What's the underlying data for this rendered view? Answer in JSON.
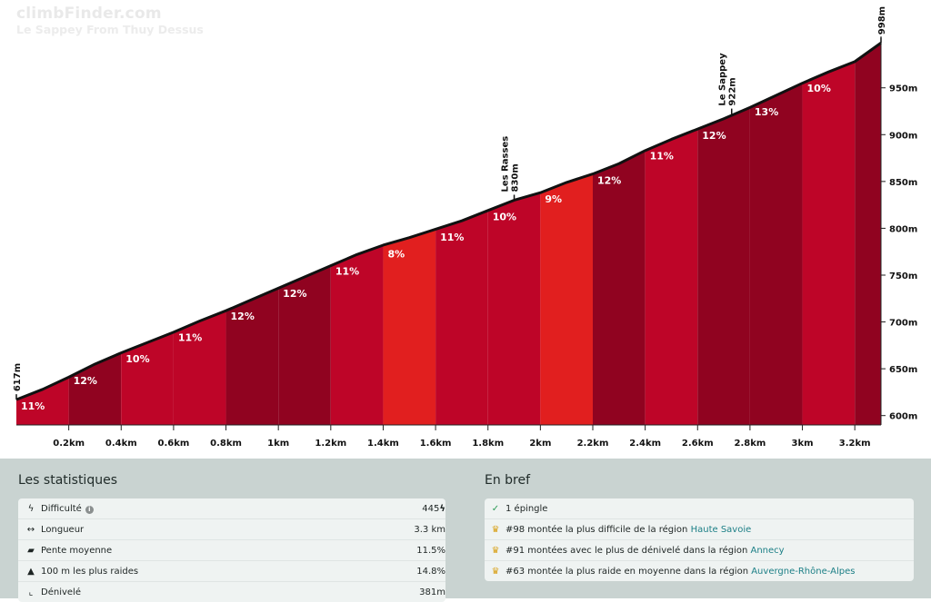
{
  "header": {
    "brand": "climbFinder.com",
    "subtitle": "Le Sappey From Thuy Dessus"
  },
  "chart_data": {
    "type": "area",
    "x_unit": "km",
    "y_unit": "m",
    "ylim": [
      590,
      1005
    ],
    "xlim": [
      0,
      3.3
    ],
    "x": [
      0,
      0.1,
      0.2,
      0.3,
      0.4,
      0.5,
      0.6,
      0.7,
      0.8,
      0.9,
      1.0,
      1.1,
      1.2,
      1.3,
      1.4,
      1.5,
      1.6,
      1.7,
      1.8,
      1.9,
      2.0,
      2.1,
      2.2,
      2.3,
      2.4,
      2.5,
      2.6,
      2.7,
      2.8,
      2.9,
      3.0,
      3.1,
      3.2,
      3.3
    ],
    "elevation": [
      617,
      628,
      641,
      655,
      667,
      678,
      689,
      701,
      712,
      724,
      736,
      748,
      760,
      772,
      782,
      790,
      799,
      808,
      819,
      830,
      838,
      849,
      858,
      869,
      883,
      895,
      906,
      917,
      929,
      942,
      955,
      967,
      978,
      998
    ],
    "segments": [
      {
        "from": 0.0,
        "to": 0.2,
        "gradient": "11%",
        "color": "#be0528"
      },
      {
        "from": 0.2,
        "to": 0.4,
        "gradient": "12%",
        "color": "#900320"
      },
      {
        "from": 0.4,
        "to": 0.6,
        "gradient": "10%",
        "color": "#be0528"
      },
      {
        "from": 0.6,
        "to": 0.8,
        "gradient": "11%",
        "color": "#be0528"
      },
      {
        "from": 0.8,
        "to": 1.0,
        "gradient": "12%",
        "color": "#900320"
      },
      {
        "from": 1.0,
        "to": 1.2,
        "gradient": "12%",
        "color": "#900320"
      },
      {
        "from": 1.2,
        "to": 1.4,
        "gradient": "11%",
        "color": "#be0528"
      },
      {
        "from": 1.4,
        "to": 1.6,
        "gradient": "8%",
        "color": "#e11f1f"
      },
      {
        "from": 1.6,
        "to": 1.8,
        "gradient": "11%",
        "color": "#be0528"
      },
      {
        "from": 1.8,
        "to": 2.0,
        "gradient": "10%",
        "color": "#be0528"
      },
      {
        "from": 2.0,
        "to": 2.2,
        "gradient": "9%",
        "color": "#e11f1f"
      },
      {
        "from": 2.2,
        "to": 2.4,
        "gradient": "12%",
        "color": "#900320"
      },
      {
        "from": 2.4,
        "to": 2.6,
        "gradient": "11%",
        "color": "#be0528"
      },
      {
        "from": 2.6,
        "to": 2.8,
        "gradient": "12%",
        "color": "#900320"
      },
      {
        "from": 2.8,
        "to": 3.0,
        "gradient": "13%",
        "color": "#900320"
      },
      {
        "from": 3.0,
        "to": 3.2,
        "gradient": "10%",
        "color": "#be0528"
      },
      {
        "from": 3.2,
        "to": 3.3,
        "gradient": "",
        "color": "#900320"
      }
    ],
    "x_ticks": [
      {
        "value": 0.2,
        "label": "0.2km"
      },
      {
        "value": 0.4,
        "label": "0.4km"
      },
      {
        "value": 0.6,
        "label": "0.6km"
      },
      {
        "value": 0.8,
        "label": "0.8km"
      },
      {
        "value": 1.0,
        "label": "1km"
      },
      {
        "value": 1.2,
        "label": "1.2km"
      },
      {
        "value": 1.4,
        "label": "1.4km"
      },
      {
        "value": 1.6,
        "label": "1.6km"
      },
      {
        "value": 1.8,
        "label": "1.8km"
      },
      {
        "value": 2.0,
        "label": "2km"
      },
      {
        "value": 2.2,
        "label": "2.2km"
      },
      {
        "value": 2.4,
        "label": "2.4km"
      },
      {
        "value": 2.6,
        "label": "2.6km"
      },
      {
        "value": 2.8,
        "label": "2.8km"
      },
      {
        "value": 3.0,
        "label": "3km"
      },
      {
        "value": 3.2,
        "label": "3.2km"
      }
    ],
    "y_ticks": [
      {
        "value": 600,
        "label": "600m"
      },
      {
        "value": 650,
        "label": "650m"
      },
      {
        "value": 700,
        "label": "700m"
      },
      {
        "value": 750,
        "label": "750m"
      },
      {
        "value": 800,
        "label": "800m"
      },
      {
        "value": 850,
        "label": "850m"
      },
      {
        "value": 900,
        "label": "900m"
      },
      {
        "value": 950,
        "label": "950m"
      }
    ],
    "annotations": [
      {
        "x": 0.0,
        "elevation": 617,
        "lines": [
          "617m"
        ]
      },
      {
        "x": 1.9,
        "elevation": 830,
        "lines": [
          "Les Rasses",
          "830m"
        ]
      },
      {
        "x": 2.73,
        "elevation": 922,
        "lines": [
          "Le Sappey",
          "922m"
        ]
      },
      {
        "x": 3.3,
        "elevation": 998,
        "lines": [
          "998m"
        ]
      }
    ]
  },
  "stats": {
    "title": "Les statistiques",
    "rows": [
      {
        "icon": "bolt-icon",
        "glyph": "ϟ",
        "label": "Difficulté",
        "value": "445"
      },
      {
        "icon": "arrows-horizontal-icon",
        "glyph": "↔",
        "label": "Longueur",
        "value": "3.3 km"
      },
      {
        "icon": "ruler-icon",
        "glyph": "▰",
        "label": "Pente moyenne",
        "value": "11.5%"
      },
      {
        "icon": "warning-icon",
        "glyph": "▲",
        "label": "100 m les plus raides",
        "value": "14.8%"
      },
      {
        "icon": "chart-line-icon",
        "glyph": "⌞",
        "label": "Dénivelé",
        "value": "381m"
      }
    ]
  },
  "summary": {
    "title": "En bref",
    "rows": [
      {
        "icon": "check-icon",
        "glyph": "✓",
        "text": "1 épingle",
        "link": ""
      },
      {
        "icon": "trophy-icon",
        "glyph": "♛",
        "text": "#98 montée la plus difficile de la région ",
        "link": "Haute Savoie"
      },
      {
        "icon": "trophy-icon",
        "glyph": "♛",
        "text": "#91 montées avec le plus de dénivelé dans la région ",
        "link": "Annecy"
      },
      {
        "icon": "trophy-icon",
        "glyph": "♛",
        "text": "#63 montée la plus raide en moyenne dans la région ",
        "link": "Auvergne-Rhône-Alpes"
      }
    ]
  }
}
